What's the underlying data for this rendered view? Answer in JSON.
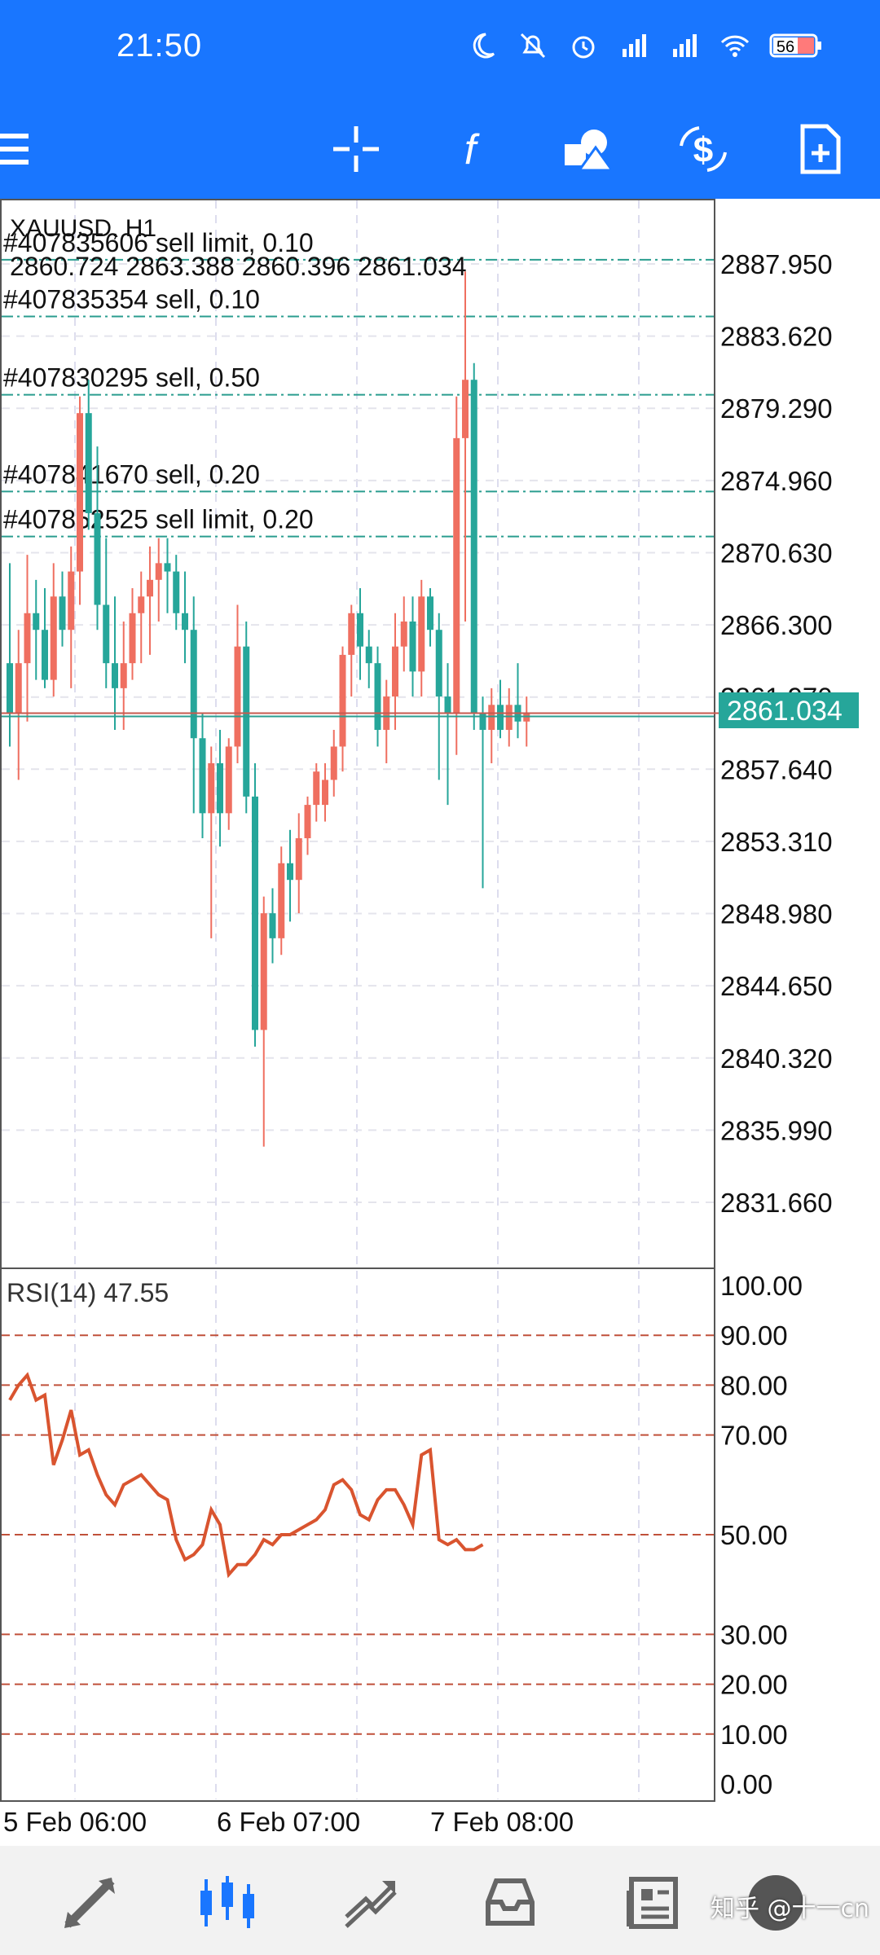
{
  "status_bar": {
    "time": "21:50",
    "battery_level": "56",
    "icons": [
      "moon-icon",
      "mute-icon",
      "alarm-icon",
      "signal-hd-icon",
      "signal-hd-icon",
      "wifi-icon",
      "battery-icon"
    ]
  },
  "toolbar": {
    "buttons": [
      "menu-icon",
      "crosshair-icon",
      "indicators-icon",
      "objects-icon",
      "trade-icon",
      "new-order-icon"
    ]
  },
  "chart": {
    "symbol": "XAUUSD, H1",
    "ohlc": "2860.724 2863.388 2860.396 2861.034",
    "current_price": "2861.034",
    "price_axis": [
      "2887.950",
      "2883.620",
      "2879.290",
      "2874.960",
      "2870.630",
      "2866.300",
      "2861.970",
      "2857.640",
      "2853.310",
      "2848.980",
      "2844.650",
      "2840.320",
      "2835.990",
      "2831.660"
    ],
    "orders": [
      {
        "label": "#407835606 sell limit, 0.10",
        "price": 2888.2
      },
      {
        "label": "#407835354 sell, 0.10",
        "price": 2884.8
      },
      {
        "label": "#407830295 sell, 0.50",
        "price": 2880.1
      },
      {
        "label": "#407841670 sell, 0.20",
        "price": 2874.3
      },
      {
        "label": "#407852525 sell limit, 0.20",
        "price": 2871.6
      }
    ],
    "time_axis": [
      "5 Feb 06:00",
      "6 Feb 07:00",
      "7 Feb 08:00"
    ]
  },
  "rsi": {
    "label": "RSI(14) 47.55",
    "axis": [
      "100.00",
      "90.00",
      "80.00",
      "70.00",
      "50.00",
      "30.00",
      "20.00",
      "10.00",
      "0.00"
    ]
  },
  "bottom_nav": {
    "items": [
      "quotes-icon",
      "chart-icon",
      "trade-icon",
      "history-icon",
      "news-icon",
      "chat-icon"
    ],
    "watermark": "知乎 @十一cn"
  },
  "chart_data": [
    {
      "type": "candlestick",
      "title": "XAUUSD, H1",
      "ylim": [
        2828.0,
        2890.0
      ],
      "series": [
        {
          "name": "XAUUSD",
          "candles": [
            [
              2864.0,
              2870.0,
              2859.0,
              2861.0
            ],
            [
              2861.0,
              2866.0,
              2857.0,
              2864.0
            ],
            [
              2864.0,
              2870.5,
              2860.5,
              2867.0
            ],
            [
              2867.0,
              2869.0,
              2863.0,
              2866.0
            ],
            [
              2866.0,
              2868.5,
              2862.5,
              2863.0
            ],
            [
              2863.0,
              2870.0,
              2862.0,
              2868.0
            ],
            [
              2868.0,
              2869.5,
              2865.0,
              2866.0
            ],
            [
              2866.0,
              2871.0,
              2862.5,
              2869.5
            ],
            [
              2869.5,
              2880.0,
              2867.5,
              2879.0
            ],
            [
              2879.0,
              2881.0,
              2872.0,
              2873.0
            ],
            [
              2873.0,
              2877.0,
              2866.0,
              2867.5
            ],
            [
              2867.5,
              2871.5,
              2862.5,
              2864.0
            ],
            [
              2864.0,
              2868.0,
              2860.0,
              2862.5
            ],
            [
              2862.5,
              2866.5,
              2860.0,
              2864.0
            ],
            [
              2864.0,
              2868.5,
              2863.0,
              2867.0
            ],
            [
              2867.0,
              2869.5,
              2864.0,
              2868.0
            ],
            [
              2868.0,
              2871.0,
              2864.5,
              2869.0
            ],
            [
              2869.0,
              2871.5,
              2866.5,
              2870.0
            ],
            [
              2870.0,
              2871.5,
              2867.0,
              2869.5
            ],
            [
              2869.5,
              2870.5,
              2866.0,
              2867.0
            ],
            [
              2867.0,
              2869.5,
              2864.0,
              2866.0
            ],
            [
              2866.0,
              2868.0,
              2855.0,
              2859.5
            ],
            [
              2859.5,
              2861.0,
              2853.5,
              2855.0
            ],
            [
              2855.0,
              2859.0,
              2847.5,
              2858.0
            ],
            [
              2858.0,
              2860.0,
              2853.0,
              2855.0
            ],
            [
              2855.0,
              2859.5,
              2854.0,
              2859.0
            ],
            [
              2859.0,
              2867.5,
              2858.0,
              2865.0
            ],
            [
              2865.0,
              2866.5,
              2855.0,
              2856.0
            ],
            [
              2856.0,
              2858.0,
              2841.0,
              2842.0
            ],
            [
              2842.0,
              2850.0,
              2835.0,
              2849.0
            ],
            [
              2849.0,
              2850.5,
              2846.0,
              2847.5
            ],
            [
              2847.5,
              2853.0,
              2846.5,
              2852.0
            ],
            [
              2852.0,
              2854.0,
              2848.5,
              2851.0
            ],
            [
              2851.0,
              2855.0,
              2849.0,
              2853.5
            ],
            [
              2853.5,
              2856.0,
              2852.5,
              2855.5
            ],
            [
              2855.5,
              2858.0,
              2854.5,
              2857.5
            ],
            [
              2855.5,
              2858.0,
              2854.5,
              2857.0
            ],
            [
              2857.0,
              2860.0,
              2856.0,
              2859.0
            ],
            [
              2859.0,
              2865.0,
              2857.5,
              2864.5
            ],
            [
              2864.5,
              2867.5,
              2862.0,
              2867.0
            ],
            [
              2867.0,
              2868.5,
              2863.0,
              2865.0
            ],
            [
              2865.0,
              2866.0,
              2862.5,
              2864.0
            ],
            [
              2864.0,
              2865.0,
              2859.0,
              2860.0
            ],
            [
              2860.0,
              2863.0,
              2858.0,
              2862.0
            ],
            [
              2862.0,
              2867.0,
              2860.0,
              2865.0
            ],
            [
              2865.0,
              2868.0,
              2863.5,
              2866.5
            ],
            [
              2866.5,
              2868.0,
              2862.0,
              2863.5
            ],
            [
              2863.5,
              2869.0,
              2862.0,
              2868.0
            ],
            [
              2868.0,
              2868.5,
              2865.0,
              2866.0
            ],
            [
              2866.0,
              2867.0,
              2857.0,
              2862.0
            ],
            [
              2862.0,
              2864.0,
              2855.5,
              2861.0
            ],
            [
              2861.0,
              2880.0,
              2858.5,
              2877.5
            ],
            [
              2877.5,
              2887.5,
              2866.5,
              2881.0
            ],
            [
              2881.0,
              2882.0,
              2860.0,
              2861.0
            ],
            [
              2861.0,
              2862.0,
              2850.5,
              2860.0
            ],
            [
              2860.0,
              2862.5,
              2858.0,
              2861.5
            ],
            [
              2861.5,
              2863.0,
              2859.5,
              2860.0
            ],
            [
              2860.0,
              2862.5,
              2859.0,
              2861.5
            ],
            [
              2861.5,
              2864.0,
              2859.5,
              2860.5
            ],
            [
              2860.5,
              2862.0,
              2859.0,
              2861.0
            ]
          ]
        }
      ],
      "bull_color": "#ef6f60",
      "bear_color": "#26a69a"
    },
    {
      "type": "line",
      "title": "RSI(14) 47.55",
      "ylim": [
        0,
        100
      ],
      "levels": [
        90,
        80,
        70,
        50,
        30,
        20,
        10
      ],
      "series": [
        {
          "name": "RSI(14)",
          "values": [
            77,
            80,
            82,
            77,
            78,
            64,
            69,
            75,
            66,
            67,
            62,
            58,
            56,
            60,
            61,
            62,
            60,
            58,
            57,
            49,
            45,
            46,
            48,
            55,
            52,
            42,
            44,
            44,
            46,
            49,
            48,
            50,
            50,
            51,
            52,
            53,
            55,
            60,
            61,
            59,
            54,
            53,
            57,
            59,
            59,
            56,
            52,
            66,
            67,
            49,
            48,
            49,
            47,
            47,
            48
          ]
        }
      ],
      "color": "#d9542f"
    }
  ]
}
